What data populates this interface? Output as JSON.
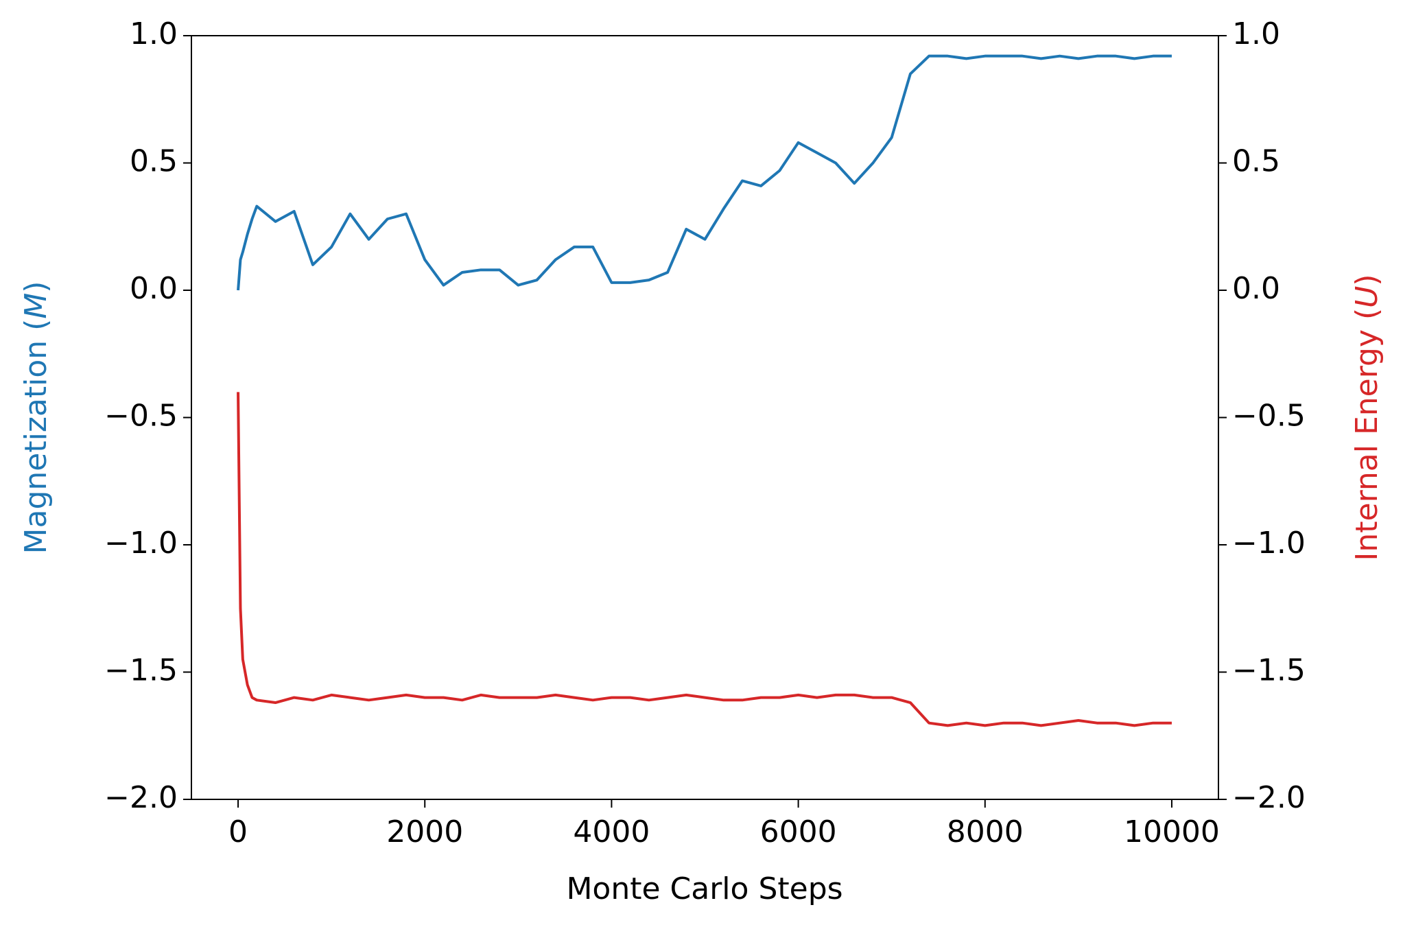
{
  "chart_data": {
    "type": "line",
    "xlabel": "Monte Carlo Steps",
    "ylabel_parts": [
      "Magnetization (",
      "M",
      ")"
    ],
    "y2label_parts": [
      "Internal Energy (",
      "U",
      ")"
    ],
    "x": [
      0,
      25,
      50,
      100,
      150,
      200,
      400,
      600,
      800,
      1000,
      1200,
      1400,
      1600,
      1800,
      2000,
      2200,
      2400,
      2600,
      2800,
      3000,
      3200,
      3400,
      3600,
      3800,
      4000,
      4200,
      4400,
      4600,
      4800,
      5000,
      5200,
      5400,
      5600,
      5800,
      6000,
      6200,
      6400,
      6600,
      6800,
      7000,
      7200,
      7400,
      7600,
      7800,
      8000,
      8200,
      8400,
      8600,
      8800,
      9000,
      9200,
      9400,
      9600,
      9800,
      10000
    ],
    "series": [
      {
        "color": "#1f77b4",
        "axis": "y",
        "values": [
          0,
          0.12,
          0.15,
          0.22,
          0.28,
          0.33,
          0.27,
          0.31,
          0.1,
          0.17,
          0.3,
          0.2,
          0.28,
          0.3,
          0.12,
          0.02,
          0.07,
          0.08,
          0.08,
          0.02,
          0.04,
          0.12,
          0.17,
          0.17,
          0.03,
          0.03,
          0.04,
          0.07,
          0.24,
          0.2,
          0.32,
          0.43,
          0.41,
          0.47,
          0.58,
          0.54,
          0.5,
          0.42,
          0.5,
          0.6,
          0.85,
          0.92,
          0.92,
          0.91,
          0.92,
          0.92,
          0.92,
          0.91,
          0.92,
          0.91,
          0.92,
          0.92,
          0.91,
          0.92,
          0.92
        ]
      },
      {
        "color": "#d62728",
        "axis": "y2",
        "values": [
          -0.4,
          -1.25,
          -1.45,
          -1.55,
          -1.6,
          -1.61,
          -1.62,
          -1.6,
          -1.61,
          -1.59,
          -1.6,
          -1.61,
          -1.6,
          -1.59,
          -1.6,
          -1.6,
          -1.61,
          -1.59,
          -1.6,
          -1.6,
          -1.6,
          -1.59,
          -1.6,
          -1.61,
          -1.6,
          -1.6,
          -1.61,
          -1.6,
          -1.59,
          -1.6,
          -1.61,
          -1.61,
          -1.6,
          -1.6,
          -1.59,
          -1.6,
          -1.59,
          -1.59,
          -1.6,
          -1.6,
          -1.62,
          -1.7,
          -1.71,
          -1.7,
          -1.71,
          -1.7,
          -1.7,
          -1.71,
          -1.7,
          -1.69,
          -1.7,
          -1.7,
          -1.71,
          -1.7,
          -1.7
        ]
      }
    ],
    "xlim": [
      -500,
      10500
    ],
    "xticks": [
      0,
      2000,
      4000,
      6000,
      8000,
      10000
    ],
    "ylim": [
      -2,
      1
    ],
    "yticks": [
      {
        "value": -2,
        "label": "−2.0"
      },
      {
        "value": -1.5,
        "label": "−1.5"
      },
      {
        "value": -1,
        "label": "−1.0"
      },
      {
        "value": -0.5,
        "label": "−0.5"
      },
      {
        "value": 0,
        "label": "0.0"
      },
      0.5,
      {
        "value": 1,
        "label": "1.0"
      }
    ],
    "y2lim": [
      -2,
      1
    ],
    "y2ticks": [
      {
        "value": -2,
        "label": "−2.0"
      },
      {
        "value": -1.5,
        "label": "−1.5"
      },
      {
        "value": -1,
        "label": "−1.0"
      },
      {
        "value": -0.5,
        "label": "−0.5"
      },
      {
        "value": 0,
        "label": "0.0"
      },
      0.5,
      {
        "value": 1,
        "label": "1.0"
      }
    ],
    "grid": false
  }
}
